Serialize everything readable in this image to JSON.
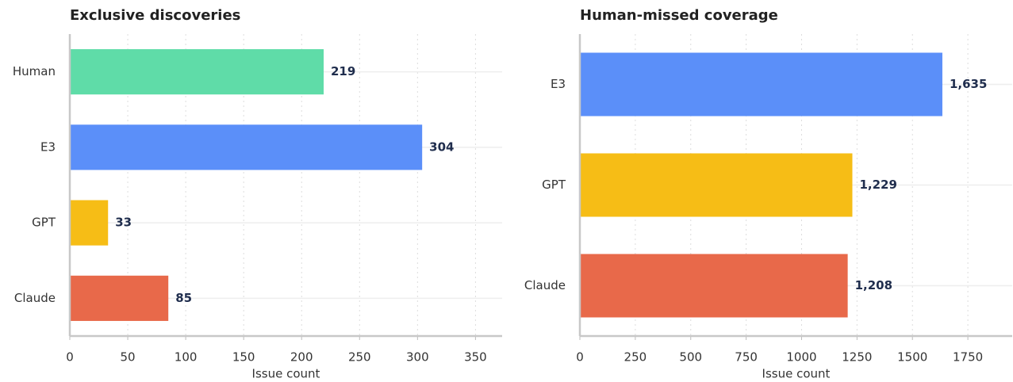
{
  "chart_data": [
    {
      "type": "barh",
      "title": "Exclusive discoveries",
      "xlabel": "Issue count",
      "categories": [
        "Human",
        "E3",
        "GPT",
        "Claude"
      ],
      "values": [
        219,
        304,
        33,
        85
      ],
      "colors": [
        "#5fdca8",
        "#5b8ff9",
        "#f6bd16",
        "#e8694a"
      ],
      "xlim": [
        0,
        373
      ],
      "xticks": [
        0,
        50,
        100,
        150,
        200,
        250,
        300,
        350
      ],
      "grid": true
    },
    {
      "type": "barh",
      "title": "Human-missed coverage",
      "xlabel": "Issue count",
      "categories": [
        "E3",
        "GPT",
        "Claude"
      ],
      "values": [
        1635,
        1229,
        1208
      ],
      "value_labels": [
        "1,635",
        "1,229",
        "1,208"
      ],
      "colors": [
        "#5b8ff9",
        "#f6bd16",
        "#e8694a"
      ],
      "xlim": [
        0,
        1950
      ],
      "xticks": [
        0,
        250,
        500,
        750,
        1000,
        1250,
        1500,
        1750
      ],
      "grid": true
    }
  ]
}
